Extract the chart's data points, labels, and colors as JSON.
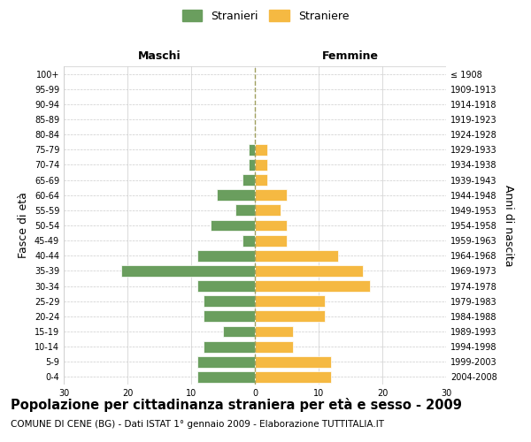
{
  "age_groups": [
    "0-4",
    "5-9",
    "10-14",
    "15-19",
    "20-24",
    "25-29",
    "30-34",
    "35-39",
    "40-44",
    "45-49",
    "50-54",
    "55-59",
    "60-64",
    "65-69",
    "70-74",
    "75-79",
    "80-84",
    "85-89",
    "90-94",
    "95-99",
    "100+"
  ],
  "birth_years": [
    "2004-2008",
    "1999-2003",
    "1994-1998",
    "1989-1993",
    "1984-1988",
    "1979-1983",
    "1974-1978",
    "1969-1973",
    "1964-1968",
    "1959-1963",
    "1954-1958",
    "1949-1953",
    "1944-1948",
    "1939-1943",
    "1934-1938",
    "1929-1933",
    "1924-1928",
    "1919-1923",
    "1914-1918",
    "1909-1913",
    "≤ 1908"
  ],
  "males": [
    9,
    9,
    8,
    5,
    8,
    8,
    9,
    21,
    9,
    2,
    7,
    3,
    6,
    2,
    1,
    1,
    0,
    0,
    0,
    0,
    0
  ],
  "females": [
    12,
    12,
    6,
    6,
    11,
    11,
    18,
    17,
    13,
    5,
    5,
    4,
    5,
    2,
    2,
    2,
    0,
    0,
    0,
    0,
    0
  ],
  "male_color": "#6a9e5e",
  "female_color": "#f5b942",
  "bar_edge_color": "#ffffff",
  "grid_color": "#cccccc",
  "center_line_color": "#a0a060",
  "background_color": "#ffffff",
  "title": "Popolazione per cittadinanza straniera per età e sesso - 2009",
  "subtitle": "COMUNE DI CENE (BG) - Dati ISTAT 1° gennaio 2009 - Elaborazione TUTTITALIA.IT",
  "left_label": "Maschi",
  "right_label": "Femmine",
  "left_axis_label": "Fasce di età",
  "right_axis_label": "Anni di nascita",
  "legend_male": "Stranieri",
  "legend_female": "Straniere",
  "xlim": 30,
  "title_fontsize": 10.5,
  "subtitle_fontsize": 7.5,
  "tick_fontsize": 7,
  "label_fontsize": 9
}
